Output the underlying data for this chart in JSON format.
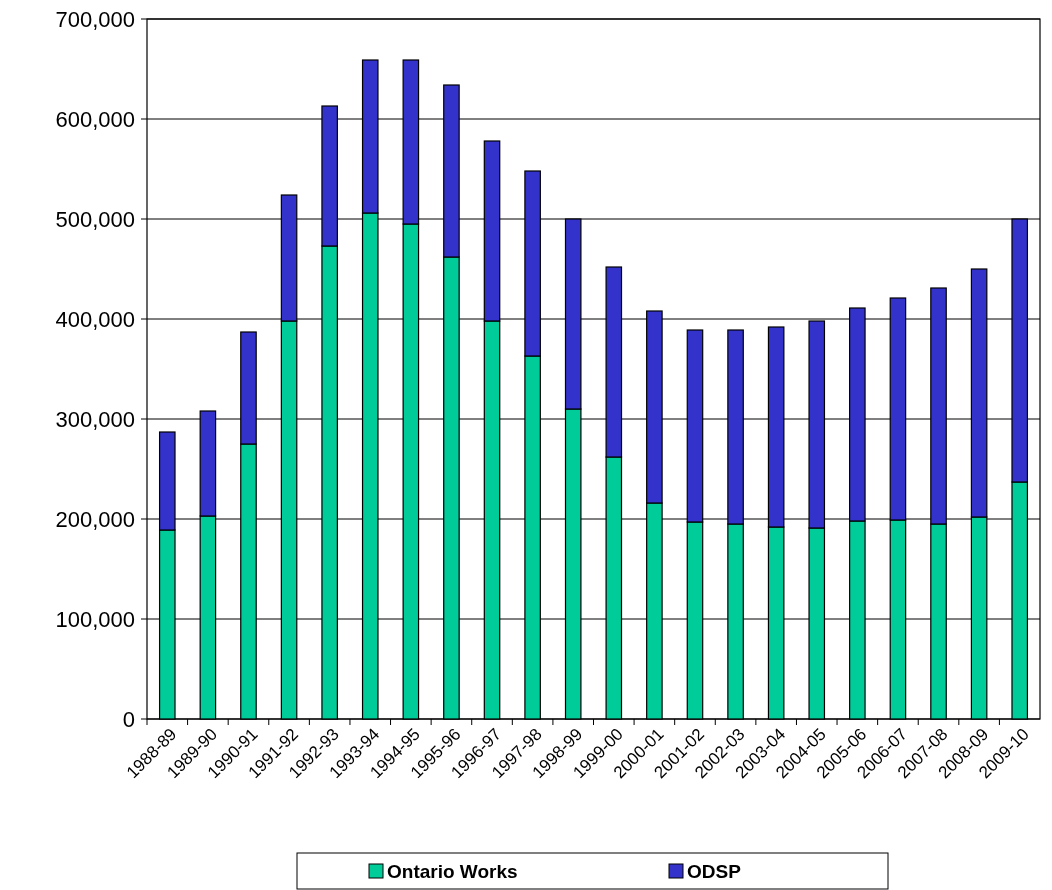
{
  "chart_data": {
    "type": "bar",
    "stacked": true,
    "categories": [
      "1988-89",
      "1989-90",
      "1990-91",
      "1991-92",
      "1992-93",
      "1993-94",
      "1994-95",
      "1995-96",
      "1996-97",
      "1997-98",
      "1998-99",
      "1999-00",
      "2000-01",
      "2001-02",
      "2002-03",
      "2003-04",
      "2004-05",
      "2005-06",
      "2006-07",
      "2007-08",
      "2008-09",
      "2009-10"
    ],
    "series": [
      {
        "name": "Ontario Works",
        "color": "#00cc99",
        "values": [
          189000,
          203000,
          275000,
          398000,
          473000,
          506000,
          495000,
          462000,
          398000,
          363000,
          310000,
          262000,
          216000,
          197000,
          195000,
          192000,
          191000,
          198000,
          199000,
          195000,
          202000,
          237000
        ]
      },
      {
        "name": "ODSP",
        "color": "#3333cc",
        "values": [
          98000,
          105000,
          112000,
          126000,
          140000,
          153000,
          164000,
          172000,
          180000,
          185000,
          190000,
          190000,
          192000,
          192000,
          194000,
          200000,
          207000,
          213000,
          222000,
          236000,
          248000,
          263000
        ]
      }
    ],
    "ylim": [
      0,
      700000
    ],
    "yticks": [
      0,
      {
        "value": 100000,
        "label": "100,000"
      },
      {
        "value": 200000,
        "label": "200,000"
      },
      {
        "value": 300000,
        "label": "300,000"
      },
      {
        "value": 400000,
        "label": "400,000"
      },
      {
        "value": 500000,
        "label": "500,000"
      },
      {
        "value": 600000,
        "label": "600,000"
      },
      {
        "value": 700000,
        "label": "700,000"
      }
    ],
    "grid": "y",
    "legend": "bottom"
  }
}
